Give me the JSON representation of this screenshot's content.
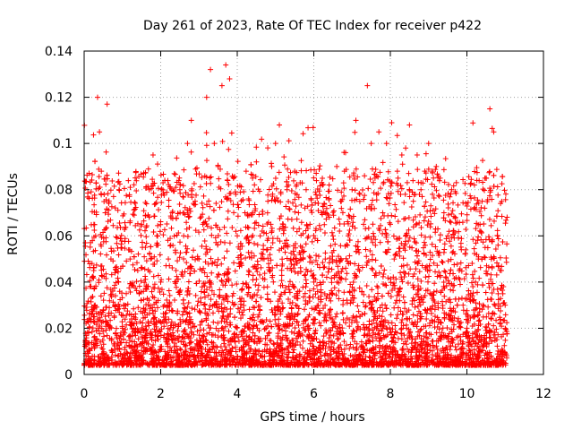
{
  "chart_data": {
    "type": "scatter",
    "title": "Day 261 of 2023, Rate Of TEC Index for receiver p422",
    "xlabel": "GPS time / hours",
    "ylabel": "ROTI / TECUs",
    "xlim": [
      0,
      12
    ],
    "ylim": [
      0,
      0.14
    ],
    "xticks": [
      0,
      2,
      4,
      6,
      8,
      10,
      12
    ],
    "yticks": [
      0,
      0.02,
      0.04,
      0.06,
      0.08,
      0.1,
      0.12,
      0.14
    ],
    "xtick_labels": [
      "0",
      "2",
      "4",
      "6",
      "8",
      "10",
      "12"
    ],
    "ytick_labels": [
      "0",
      "0.02",
      "0.04",
      "0.06",
      "0.08",
      "0.1",
      "0.12",
      "0.14"
    ],
    "grid": true,
    "marker": "+",
    "color": "#ff0000",
    "x_data_range": [
      0,
      11.05
    ],
    "series": [
      {
        "name": "ROTI",
        "points": [
          [
            0.05,
            0.012
          ],
          [
            0.12,
            0.018
          ],
          [
            0.2,
            0.028
          ],
          [
            0.25,
            0.045
          ],
          [
            0.3,
            0.06
          ],
          [
            0.35,
            0.12
          ],
          [
            0.4,
            0.105
          ],
          [
            0.45,
            0.088
          ],
          [
            0.55,
            0.07
          ],
          [
            0.6,
            0.117
          ],
          [
            0.7,
            0.05
          ],
          [
            0.8,
            0.03
          ],
          [
            0.9,
            0.04
          ],
          [
            1.0,
            0.02
          ],
          [
            1.1,
            0.035
          ],
          [
            1.2,
            0.05
          ],
          [
            1.3,
            0.025
          ],
          [
            1.4,
            0.045
          ],
          [
            1.5,
            0.065
          ],
          [
            1.6,
            0.055
          ],
          [
            1.7,
            0.08
          ],
          [
            1.8,
            0.095
          ],
          [
            1.9,
            0.06
          ],
          [
            2.0,
            0.04
          ],
          [
            2.1,
            0.03
          ],
          [
            2.2,
            0.05
          ],
          [
            2.3,
            0.07
          ],
          [
            2.4,
            0.045
          ],
          [
            2.5,
            0.08
          ],
          [
            2.6,
            0.06
          ],
          [
            2.7,
            0.1
          ],
          [
            2.8,
            0.11
          ],
          [
            2.9,
            0.075
          ],
          [
            3.0,
            0.05
          ],
          [
            3.1,
            0.065
          ],
          [
            3.2,
            0.12
          ],
          [
            3.3,
            0.132
          ],
          [
            3.4,
            0.1
          ],
          [
            3.5,
            0.09
          ],
          [
            3.6,
            0.125
          ],
          [
            3.7,
            0.134
          ],
          [
            3.8,
            0.128
          ],
          [
            3.9,
            0.085
          ],
          [
            4.0,
            0.06
          ],
          [
            4.1,
            0.05
          ],
          [
            4.2,
            0.07
          ],
          [
            4.3,
            0.045
          ],
          [
            4.4,
            0.085
          ],
          [
            4.5,
            0.092
          ],
          [
            4.6,
            0.06
          ],
          [
            4.7,
            0.05
          ],
          [
            4.8,
            0.075
          ],
          [
            4.9,
            0.09
          ],
          [
            5.0,
            0.1
          ],
          [
            5.1,
            0.108
          ],
          [
            5.2,
            0.065
          ],
          [
            5.3,
            0.08
          ],
          [
            5.4,
            0.05
          ],
          [
            5.5,
            0.088
          ],
          [
            5.6,
            0.07
          ],
          [
            5.7,
            0.055
          ],
          [
            5.8,
            0.08
          ],
          [
            5.9,
            0.065
          ],
          [
            6.0,
            0.04
          ],
          [
            6.1,
            0.058
          ],
          [
            6.2,
            0.07
          ],
          [
            6.3,
            0.05
          ],
          [
            6.4,
            0.082
          ],
          [
            6.5,
            0.06
          ],
          [
            6.6,
            0.09
          ],
          [
            6.7,
            0.075
          ],
          [
            6.8,
            0.088
          ],
          [
            6.9,
            0.06
          ],
          [
            7.0,
            0.08
          ],
          [
            7.1,
            0.11
          ],
          [
            7.2,
            0.078
          ],
          [
            7.3,
            0.065
          ],
          [
            7.4,
            0.125
          ],
          [
            7.5,
            0.1
          ],
          [
            7.6,
            0.085
          ],
          [
            7.7,
            0.105
          ],
          [
            7.8,
            0.07
          ],
          [
            7.9,
            0.1
          ],
          [
            8.0,
            0.065
          ],
          [
            8.1,
            0.05
          ],
          [
            8.2,
            0.085
          ],
          [
            8.3,
            0.095
          ],
          [
            8.4,
            0.098
          ],
          [
            8.5,
            0.108
          ],
          [
            8.6,
            0.075
          ],
          [
            8.7,
            0.095
          ],
          [
            8.8,
            0.08
          ],
          [
            8.9,
            0.088
          ],
          [
            9.0,
            0.1
          ],
          [
            9.1,
            0.078
          ],
          [
            9.2,
            0.09
          ],
          [
            9.3,
            0.085
          ],
          [
            9.4,
            0.07
          ],
          [
            9.5,
            0.06
          ],
          [
            9.6,
            0.08
          ],
          [
            9.7,
            0.068
          ],
          [
            9.8,
            0.045
          ],
          [
            9.9,
            0.03
          ],
          [
            10.0,
            0.02
          ],
          [
            10.1,
            0.035
          ],
          [
            10.2,
            0.025
          ],
          [
            10.3,
            0.05
          ],
          [
            10.4,
            0.075
          ],
          [
            10.5,
            0.085
          ],
          [
            10.6,
            0.115
          ],
          [
            10.7,
            0.105
          ],
          [
            10.8,
            0.06
          ],
          [
            10.9,
            0.045
          ],
          [
            11.0,
            0.03
          ]
        ]
      }
    ]
  }
}
